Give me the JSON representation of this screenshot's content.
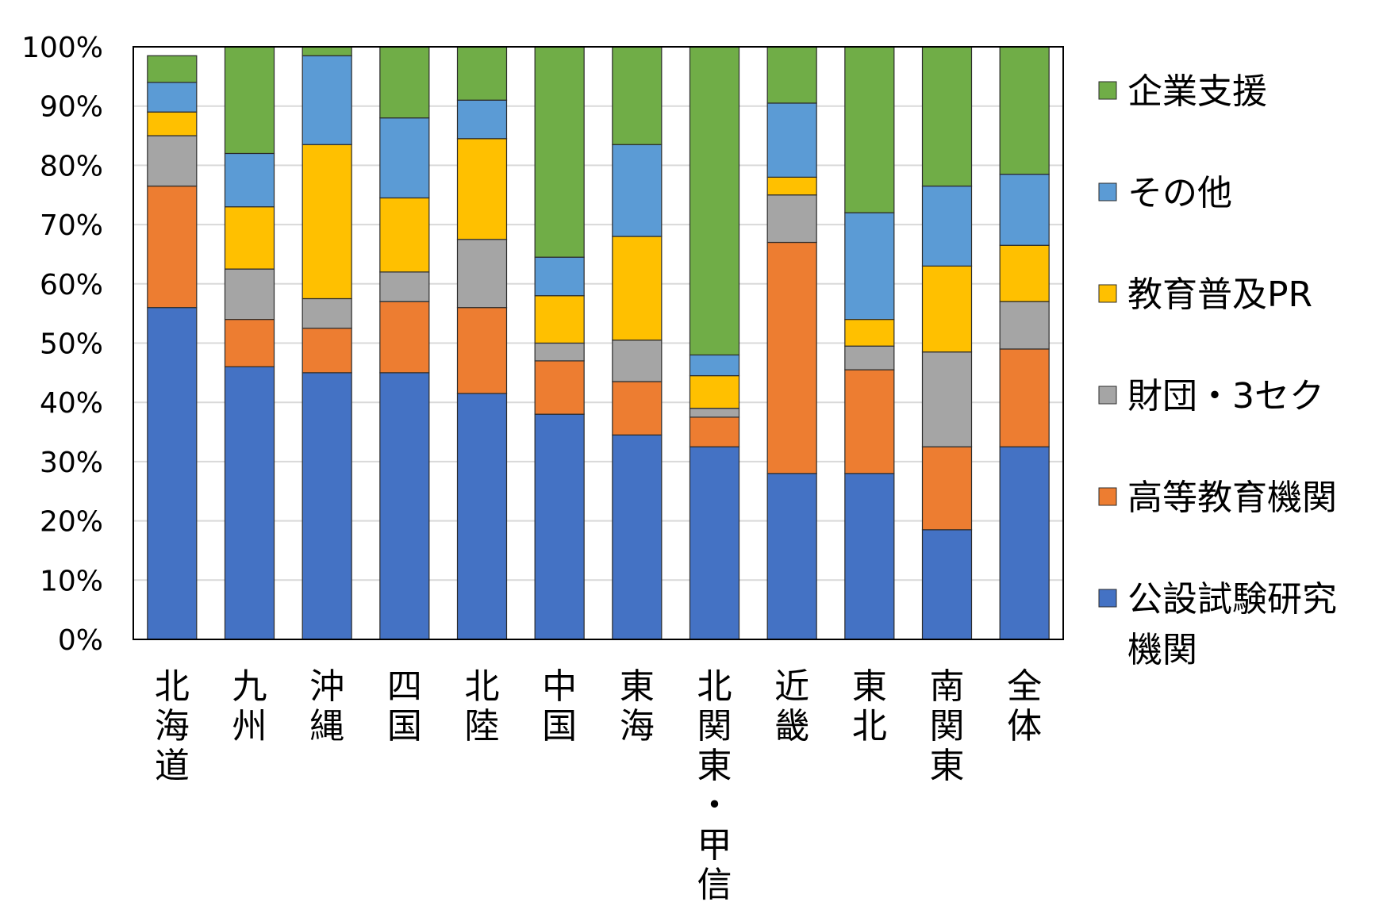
{
  "chart_data": {
    "type": "bar",
    "stacked": true,
    "percent": true,
    "ylim": [
      0,
      100
    ],
    "yticks": [
      "0%",
      "10%",
      "20%",
      "30%",
      "40%",
      "50%",
      "60%",
      "70%",
      "80%",
      "90%",
      "100%"
    ],
    "grid": true,
    "legend_position": "right",
    "categories": [
      "北海道",
      "九州",
      "沖縄",
      "四国",
      "北陸",
      "中国",
      "東海",
      "北関東・甲信",
      "近畿",
      "東北",
      "南関東",
      "全体"
    ],
    "series": [
      {
        "name": "公設試験研究機関",
        "legend_lines": [
          "公設試験研究",
          "機関"
        ],
        "color": "#4472C4",
        "values": [
          56,
          46,
          45,
          45,
          41.5,
          38,
          34.5,
          32.5,
          28,
          28,
          18.5,
          32.5
        ]
      },
      {
        "name": "高等教育機関",
        "color": "#ED7D31",
        "values": [
          20.5,
          8,
          7.5,
          12,
          14.5,
          9,
          9,
          5,
          39,
          17.5,
          14,
          16.5
        ]
      },
      {
        "name": "財団・3セク",
        "color": "#A5A5A5",
        "values": [
          8.5,
          8.5,
          5,
          5,
          11.5,
          3,
          7,
          1.5,
          8,
          4,
          16,
          8
        ]
      },
      {
        "name": "教育普及PR",
        "color": "#FFC000",
        "values": [
          4,
          10.5,
          26,
          12.5,
          17,
          8,
          17.5,
          5.5,
          3,
          4.5,
          14.5,
          9.5
        ]
      },
      {
        "name": "その他",
        "color": "#5B9BD5",
        "values": [
          5,
          9,
          15,
          13.5,
          6.5,
          6.5,
          15.5,
          3.5,
          12.5,
          18,
          13.5,
          12
        ]
      },
      {
        "name": "企業支援",
        "color": "#70AD47",
        "values": [
          4.5,
          18,
          1.5,
          12,
          9,
          35.5,
          16.5,
          52,
          9.5,
          28,
          23.5,
          21.5
        ]
      }
    ],
    "legend_order": [
      "企業支援",
      "その他",
      "教育普及PR",
      "財団・3セク",
      "高等教育機関",
      "公設試験研究機関"
    ]
  }
}
